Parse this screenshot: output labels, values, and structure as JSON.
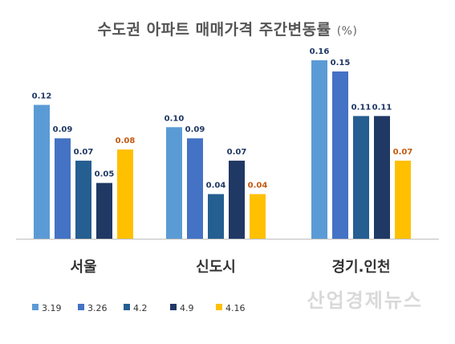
{
  "chart_data": {
    "type": "bar",
    "title": "수도권 아파트 매매가격 주간변동률",
    "unit": "(%)",
    "categories": [
      "서울",
      "신도시",
      "경기.인천"
    ],
    "series": [
      {
        "name": "3.19",
        "color": "#5b9bd5",
        "values": [
          0.12,
          0.1,
          0.16
        ]
      },
      {
        "name": "3.26",
        "color": "#4472c4",
        "values": [
          0.09,
          0.09,
          0.15
        ]
      },
      {
        "name": "4.2",
        "color": "#255e91",
        "values": [
          0.07,
          0.04,
          0.11
        ]
      },
      {
        "name": "4.9",
        "color": "#203864",
        "values": [
          0.05,
          0.07,
          0.11
        ]
      },
      {
        "name": "4.16",
        "color": "#ffc000",
        "values": [
          0.08,
          0.04,
          0.07
        ]
      }
    ],
    "ylim": [
      0,
      0.18
    ],
    "legend_position": "bottom-left",
    "grid": false,
    "value_label_color": "#1f3864",
    "highlight_label_color": "#c55a11"
  },
  "watermark": "산업경제뉴스"
}
